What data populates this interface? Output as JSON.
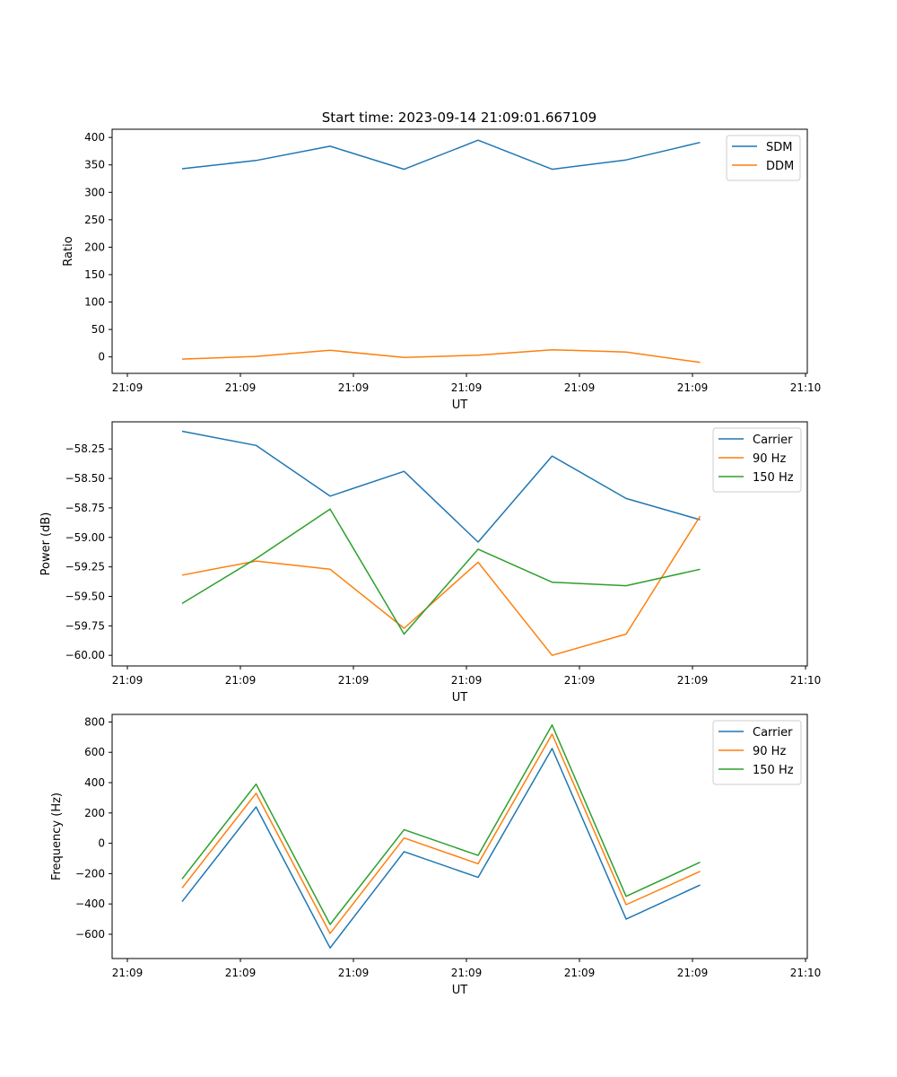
{
  "figure_title": "Start time: 2023-09-14 21:09:01.667109",
  "colors": {
    "blue": "#1f77b4",
    "orange": "#ff7f0e",
    "green": "#2ca02c"
  },
  "chart_data": [
    {
      "type": "line",
      "title": "Start time: 2023-09-14 21:09:01.667109",
      "xlabel": "UT",
      "ylabel": "Ratio",
      "x_tick_labels": [
        "21:09",
        "21:09",
        "21:09",
        "21:09",
        "21:09",
        "21:09",
        "21:10"
      ],
      "y_ticks": [
        0,
        50,
        100,
        150,
        200,
        250,
        300,
        350,
        400
      ],
      "y_tick_labels": [
        "0",
        "50",
        "100",
        "150",
        "200",
        "250",
        "300",
        "350",
        "400"
      ],
      "ylim": [
        -30,
        415
      ],
      "x": [
        1,
        2,
        3,
        4,
        5,
        6,
        7,
        8
      ],
      "legend": "top-right",
      "series": [
        {
          "name": "SDM",
          "color": "#1f77b4",
          "values": [
            343,
            358,
            384,
            342,
            395,
            342,
            359,
            391
          ]
        },
        {
          "name": "DDM",
          "color": "#ff7f0e",
          "values": [
            -4,
            1,
            12,
            -1,
            3,
            13,
            9,
            -10
          ]
        }
      ]
    },
    {
      "type": "line",
      "title": "",
      "xlabel": "UT",
      "ylabel": "Power (dB)",
      "x_tick_labels": [
        "21:09",
        "21:09",
        "21:09",
        "21:09",
        "21:09",
        "21:09",
        "21:10"
      ],
      "y_ticks": [
        -60.0,
        -59.75,
        -59.5,
        -59.25,
        -59.0,
        -58.75,
        -58.5,
        -58.25
      ],
      "y_tick_labels": [
        "−60.00",
        "−59.75",
        "−59.50",
        "−59.25",
        "−59.00",
        "−58.75",
        "−58.50",
        "−58.25"
      ],
      "ylim": [
        -60.09,
        -58.02
      ],
      "x": [
        1,
        2,
        3,
        4,
        5,
        6,
        7,
        8
      ],
      "legend": "top-right",
      "series": [
        {
          "name": "Carrier",
          "color": "#1f77b4",
          "values": [
            -58.1,
            -58.22,
            -58.65,
            -58.44,
            -59.04,
            -58.31,
            -58.67,
            -58.85
          ]
        },
        {
          "name": "90 Hz",
          "color": "#ff7f0e",
          "values": [
            -59.32,
            -59.2,
            -59.27,
            -59.77,
            -59.21,
            -60.0,
            -59.82,
            -58.82
          ]
        },
        {
          "name": "150 Hz",
          "color": "#2ca02c",
          "values": [
            -59.56,
            -59.18,
            -58.76,
            -59.82,
            -59.1,
            -59.38,
            -59.41,
            -59.27
          ]
        }
      ]
    },
    {
      "type": "line",
      "title": "",
      "xlabel": "UT",
      "ylabel": "Frequency (Hz)",
      "x_tick_labels": [
        "21:09",
        "21:09",
        "21:09",
        "21:09",
        "21:09",
        "21:09",
        "21:10"
      ],
      "y_ticks": [
        -600,
        -400,
        -200,
        0,
        200,
        400,
        600,
        800
      ],
      "y_tick_labels": [
        "−600",
        "−400",
        "−200",
        "0",
        "200",
        "400",
        "600",
        "800"
      ],
      "ylim": [
        -760,
        850
      ],
      "x": [
        1,
        2,
        3,
        4,
        5,
        6,
        7,
        8
      ],
      "legend": "top-right",
      "series": [
        {
          "name": "Carrier",
          "color": "#1f77b4",
          "values": [
            -385,
            240,
            -690,
            -55,
            -225,
            625,
            -500,
            -275
          ]
        },
        {
          "name": "90 Hz",
          "color": "#ff7f0e",
          "values": [
            -295,
            330,
            -595,
            35,
            -135,
            720,
            -405,
            -185
          ]
        },
        {
          "name": "150 Hz",
          "color": "#2ca02c",
          "values": [
            -235,
            390,
            -535,
            90,
            -80,
            780,
            -350,
            -125
          ]
        }
      ]
    }
  ]
}
